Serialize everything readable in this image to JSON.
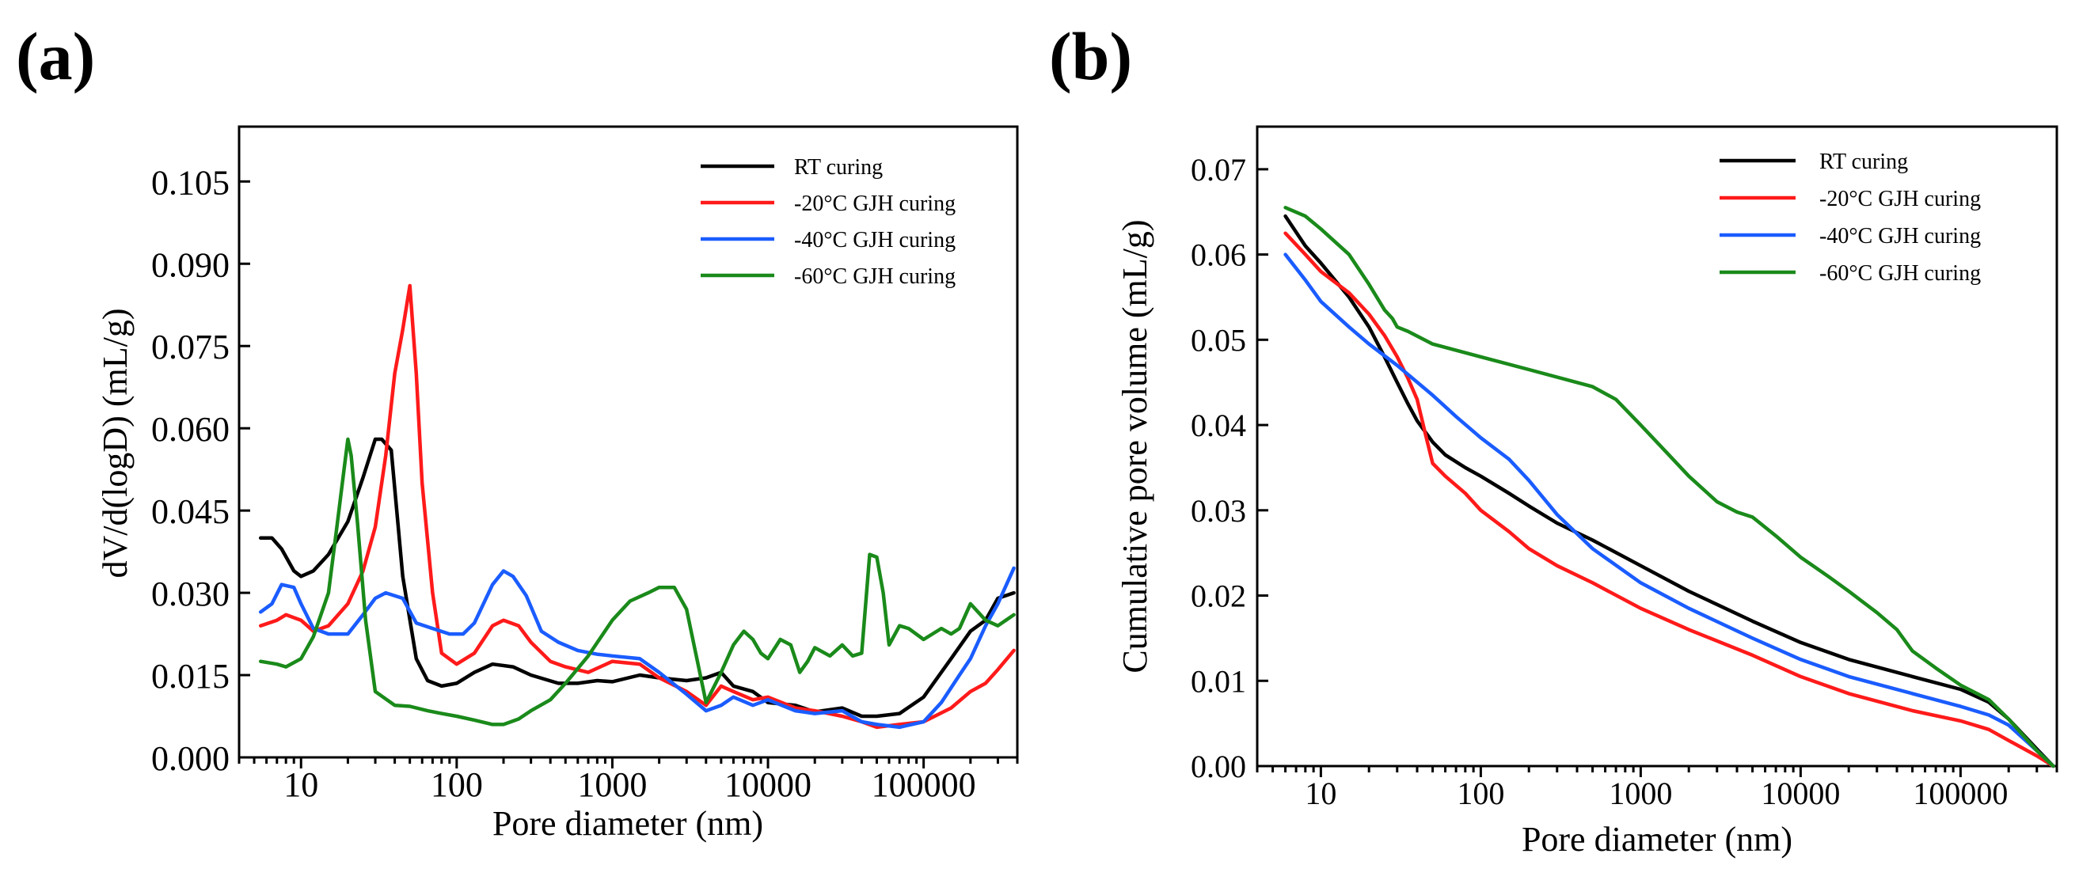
{
  "chart_data": [
    {
      "id": "a",
      "panel_label": "(a)",
      "type": "line",
      "xscale": "log",
      "xlabel": "Pore diameter (nm)",
      "ylabel": "dV/d(logD) (mL/g)",
      "xlim": [
        4,
        400000
      ],
      "ylim": [
        0,
        0.115
      ],
      "xticks": [
        10,
        100,
        1000,
        10000,
        100000
      ],
      "xtick_labels": [
        "10",
        "100",
        "1000",
        "10000",
        "100000"
      ],
      "yticks": [
        0,
        0.015,
        0.03,
        0.045,
        0.06,
        0.075,
        0.09,
        0.105
      ],
      "ytick_labels": [
        "0.000",
        "0.015",
        "0.030",
        "0.045",
        "0.060",
        "0.075",
        "0.090",
        "0.105"
      ],
      "legend_position": "top-right",
      "grid": false,
      "series": [
        {
          "name": "RT curing",
          "color": "#000000",
          "x": [
            5.5,
            6.5,
            7.5,
            9,
            10,
            12,
            15,
            20,
            25,
            30,
            33,
            38,
            45,
            55,
            65,
            80,
            100,
            130,
            170,
            230,
            300,
            450,
            600,
            800,
            1000,
            1500,
            2000,
            3000,
            4000,
            5000,
            6000,
            8000,
            10000,
            15000,
            20000,
            30000,
            40000,
            50000,
            70000,
            100000,
            150000,
            200000,
            250000,
            300000,
            380000
          ],
          "y": [
            0.04,
            0.04,
            0.038,
            0.034,
            0.033,
            0.034,
            0.037,
            0.043,
            0.051,
            0.058,
            0.058,
            0.056,
            0.033,
            0.018,
            0.014,
            0.013,
            0.0135,
            0.0155,
            0.017,
            0.0165,
            0.015,
            0.0135,
            0.0135,
            0.014,
            0.0138,
            0.015,
            0.0145,
            0.014,
            0.0145,
            0.0155,
            0.013,
            0.012,
            0.01,
            0.0095,
            0.0083,
            0.009,
            0.0075,
            0.0075,
            0.008,
            0.011,
            0.018,
            0.023,
            0.025,
            0.029,
            0.03
          ]
        },
        {
          "name": "-20°C GJH curing",
          "color": "#ff1a1a",
          "x": [
            5.5,
            7,
            8,
            10,
            12,
            15,
            20,
            25,
            30,
            35,
            40,
            45,
            50,
            55,
            60,
            70,
            80,
            100,
            130,
            170,
            200,
            250,
            300,
            400,
            500,
            700,
            1000,
            1500,
            2000,
            3000,
            4000,
            5000,
            6000,
            8000,
            10000,
            15000,
            20000,
            30000,
            40000,
            50000,
            70000,
            100000,
            150000,
            200000,
            250000,
            300000,
            380000
          ],
          "y": [
            0.024,
            0.025,
            0.026,
            0.025,
            0.023,
            0.024,
            0.028,
            0.034,
            0.042,
            0.055,
            0.07,
            0.078,
            0.086,
            0.07,
            0.05,
            0.03,
            0.019,
            0.017,
            0.019,
            0.024,
            0.025,
            0.024,
            0.021,
            0.0175,
            0.0165,
            0.0155,
            0.0175,
            0.017,
            0.0145,
            0.012,
            0.0095,
            0.013,
            0.012,
            0.0105,
            0.011,
            0.009,
            0.0085,
            0.0075,
            0.0065,
            0.0055,
            0.006,
            0.0065,
            0.009,
            0.012,
            0.0135,
            0.016,
            0.0195
          ]
        },
        {
          "name": "-40°C GJH curing",
          "color": "#1a5cff",
          "x": [
            5.5,
            6.5,
            7.5,
            9,
            10,
            12,
            15,
            20,
            25,
            30,
            35,
            45,
            55,
            70,
            90,
            110,
            130,
            170,
            200,
            230,
            280,
            350,
            450,
            600,
            800,
            1000,
            1500,
            2000,
            3000,
            4000,
            5000,
            6000,
            8000,
            10000,
            15000,
            20000,
            30000,
            40000,
            50000,
            70000,
            100000,
            130000,
            170000,
            200000,
            250000,
            300000,
            380000
          ],
          "y": [
            0.0265,
            0.028,
            0.0315,
            0.031,
            0.028,
            0.0235,
            0.0225,
            0.0225,
            0.026,
            0.029,
            0.03,
            0.029,
            0.0245,
            0.0235,
            0.0225,
            0.0225,
            0.0245,
            0.0315,
            0.034,
            0.033,
            0.0295,
            0.023,
            0.021,
            0.0195,
            0.0188,
            0.0185,
            0.018,
            0.0155,
            0.0115,
            0.0085,
            0.0095,
            0.011,
            0.0095,
            0.0105,
            0.0085,
            0.008,
            0.0085,
            0.0065,
            0.006,
            0.0055,
            0.0065,
            0.01,
            0.015,
            0.018,
            0.024,
            0.028,
            0.0345
          ]
        },
        {
          "name": "-60°C GJH curing",
          "color": "#1a8a1a",
          "x": [
            5.5,
            7,
            8,
            10,
            12,
            15,
            17,
            19,
            20,
            21,
            23,
            26,
            30,
            40,
            50,
            65,
            80,
            100,
            130,
            170,
            200,
            250,
            300,
            400,
            500,
            700,
            1000,
            1300,
            1700,
            2000,
            2500,
            3000,
            4000,
            5000,
            6000,
            7000,
            8000,
            9000,
            10000,
            12000,
            14000,
            16000,
            18000,
            20000,
            25000,
            30000,
            35000,
            40000,
            45000,
            50000,
            55000,
            60000,
            70000,
            80000,
            100000,
            130000,
            150000,
            170000,
            200000,
            250000,
            300000,
            380000
          ],
          "y": [
            0.0175,
            0.017,
            0.0165,
            0.018,
            0.022,
            0.03,
            0.042,
            0.053,
            0.058,
            0.055,
            0.043,
            0.025,
            0.012,
            0.0095,
            0.0093,
            0.0085,
            0.008,
            0.0075,
            0.0068,
            0.006,
            0.006,
            0.007,
            0.0085,
            0.0105,
            0.0135,
            0.0185,
            0.025,
            0.0285,
            0.03,
            0.031,
            0.031,
            0.027,
            0.01,
            0.0155,
            0.0205,
            0.023,
            0.0215,
            0.019,
            0.018,
            0.0215,
            0.0205,
            0.0155,
            0.0175,
            0.02,
            0.0185,
            0.0205,
            0.0185,
            0.019,
            0.037,
            0.0365,
            0.03,
            0.0205,
            0.024,
            0.0235,
            0.0215,
            0.0235,
            0.0225,
            0.0235,
            0.028,
            0.025,
            0.024,
            0.026
          ]
        }
      ]
    },
    {
      "id": "b",
      "panel_label": "(b)",
      "type": "line",
      "xscale": "log",
      "xlabel": "Pore diameter (nm)",
      "ylabel": "Cumulative pore volume (mL/g)",
      "xlim": [
        4,
        400000
      ],
      "ylim": [
        0,
        0.075
      ],
      "xticks": [
        10,
        100,
        1000,
        10000,
        100000
      ],
      "xtick_labels": [
        "10",
        "100",
        "1000",
        "10000",
        "100000"
      ],
      "yticks": [
        0,
        0.01,
        0.02,
        0.03,
        0.04,
        0.05,
        0.06,
        0.07
      ],
      "ytick_labels": [
        "0.00",
        "0.01",
        "0.02",
        "0.03",
        "0.04",
        "0.05",
        "0.06",
        "0.07"
      ],
      "legend_position": "top-right",
      "grid": false,
      "series": [
        {
          "name": "RT curing",
          "color": "#000000",
          "x": [
            6,
            8,
            10,
            15,
            20,
            25,
            30,
            35,
            40,
            50,
            60,
            80,
            100,
            150,
            200,
            300,
            500,
            1000,
            2000,
            5000,
            10000,
            20000,
            50000,
            100000,
            150000,
            200000,
            300000,
            380000
          ],
          "y": [
            0.0645,
            0.061,
            0.059,
            0.055,
            0.0515,
            0.048,
            0.045,
            0.0425,
            0.0405,
            0.038,
            0.0365,
            0.035,
            0.034,
            0.032,
            0.0305,
            0.0285,
            0.0265,
            0.0235,
            0.0205,
            0.017,
            0.0145,
            0.0125,
            0.0105,
            0.009,
            0.0075,
            0.0055,
            0.002,
            0.0
          ]
        },
        {
          "name": "-20°C GJH curing",
          "color": "#ff1a1a",
          "x": [
            6,
            8,
            10,
            15,
            20,
            25,
            30,
            35,
            40,
            45,
            50,
            60,
            80,
            100,
            150,
            200,
            300,
            500,
            1000,
            2000,
            5000,
            10000,
            20000,
            50000,
            100000,
            150000,
            200000,
            300000,
            380000
          ],
          "y": [
            0.0625,
            0.06,
            0.058,
            0.0555,
            0.053,
            0.0505,
            0.048,
            0.0455,
            0.043,
            0.039,
            0.0355,
            0.034,
            0.032,
            0.03,
            0.0275,
            0.0255,
            0.0235,
            0.0215,
            0.0185,
            0.016,
            0.013,
            0.0105,
            0.0085,
            0.0065,
            0.0053,
            0.0043,
            0.003,
            0.0012,
            0.0
          ]
        },
        {
          "name": "-40°C GJH curing",
          "color": "#1a5cff",
          "x": [
            6,
            8,
            10,
            15,
            20,
            30,
            50,
            70,
            100,
            150,
            200,
            300,
            500,
            1000,
            2000,
            5000,
            10000,
            20000,
            50000,
            100000,
            150000,
            200000,
            300000,
            380000
          ],
          "y": [
            0.06,
            0.057,
            0.0545,
            0.0515,
            0.0495,
            0.047,
            0.0435,
            0.041,
            0.0385,
            0.036,
            0.0335,
            0.0295,
            0.0255,
            0.0215,
            0.0185,
            0.015,
            0.0125,
            0.0105,
            0.0085,
            0.007,
            0.006,
            0.0048,
            0.0018,
            0.0
          ]
        },
        {
          "name": "-60°C GJH curing",
          "color": "#1a8a1a",
          "x": [
            6,
            8,
            10,
            15,
            20,
            25,
            28,
            30,
            35,
            50,
            100,
            200,
            500,
            700,
            1000,
            1500,
            2000,
            3000,
            4000,
            5000,
            7000,
            10000,
            15000,
            20000,
            30000,
            40000,
            50000,
            70000,
            100000,
            150000,
            200000,
            300000,
            380000
          ],
          "y": [
            0.0655,
            0.0645,
            0.063,
            0.06,
            0.0565,
            0.0535,
            0.0525,
            0.0515,
            0.051,
            0.0495,
            0.048,
            0.0465,
            0.0445,
            0.043,
            0.04,
            0.0365,
            0.034,
            0.031,
            0.0298,
            0.0292,
            0.027,
            0.0245,
            0.0222,
            0.0205,
            0.018,
            0.016,
            0.0135,
            0.0115,
            0.0095,
            0.0078,
            0.0055,
            0.0018,
            0.0
          ]
        }
      ]
    }
  ]
}
